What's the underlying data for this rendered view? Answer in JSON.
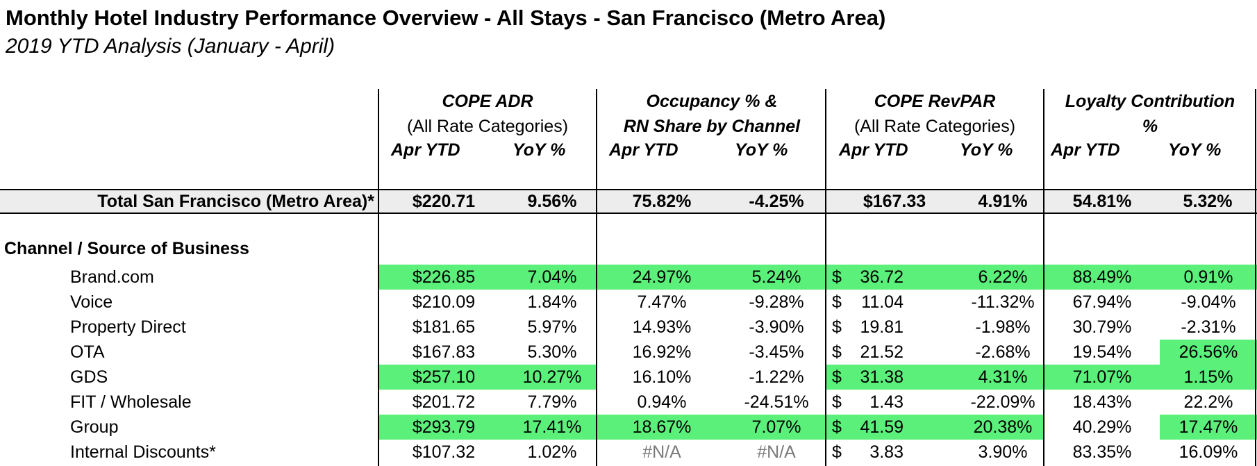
{
  "title": "Monthly Hotel Industry Performance Overview - All Stays - San Francisco (Metro Area)",
  "subtitle": "2019 YTD Analysis (January - April)",
  "column_groups": [
    {
      "line1": "COPE ADR",
      "line2": "(All Rate Categories)",
      "line2_bold": false,
      "sub1": "Apr YTD",
      "sub2": "YoY %"
    },
    {
      "line1": "Occupancy % &",
      "line2": "RN Share by Channel",
      "line2_bold": true,
      "sub1": "Apr YTD",
      "sub2": "YoY %"
    },
    {
      "line1": "COPE RevPAR",
      "line2": "(All Rate Categories)",
      "line2_bold": false,
      "sub1": "Apr YTD",
      "sub2": "YoY %"
    },
    {
      "line1": "Loyalty Contribution",
      "line2": "%",
      "line2_bold": true,
      "sub1": "Apr YTD",
      "sub2": "YoY %"
    }
  ],
  "total": {
    "label": "Total San Francisco (Metro Area)*",
    "values": [
      "$220.71",
      "9.56%",
      "75.82%",
      "-4.25%",
      "$167.33",
      "4.91%",
      "54.81%",
      "5.32%"
    ]
  },
  "section_label": "Channel / Source of Business",
  "rows": [
    {
      "label": "Brand.com",
      "values": [
        "$226.85",
        "7.04%",
        "24.97%",
        "5.24%",
        "$",
        "36.72",
        "6.22%",
        "88.49%",
        "0.91%"
      ]
    },
    {
      "label": "Voice",
      "values": [
        "$210.09",
        "1.84%",
        "7.47%",
        "-9.28%",
        "$",
        "11.04",
        "-11.32%",
        "67.94%",
        "-9.04%"
      ]
    },
    {
      "label": "Property Direct",
      "values": [
        "$181.65",
        "5.97%",
        "14.93%",
        "-3.90%",
        "$",
        "19.81",
        "-1.98%",
        "30.79%",
        "-2.31%"
      ]
    },
    {
      "label": "OTA",
      "values": [
        "$167.83",
        "5.30%",
        "16.92%",
        "-3.45%",
        "$",
        "21.52",
        "-2.68%",
        "19.54%",
        "26.56%"
      ]
    },
    {
      "label": "GDS",
      "values": [
        "$257.10",
        "10.27%",
        "16.10%",
        "-1.22%",
        "$",
        "31.38",
        "4.31%",
        "71.07%",
        "1.15%"
      ]
    },
    {
      "label": "FIT / Wholesale",
      "values": [
        "$201.72",
        "7.79%",
        "0.94%",
        "-24.51%",
        "$",
        "1.43",
        "-22.09%",
        "18.43%",
        "22.2%"
      ]
    },
    {
      "label": "Group",
      "values": [
        "$293.79",
        "17.41%",
        "18.67%",
        "7.07%",
        "$",
        "41.59",
        "20.38%",
        "40.29%",
        "17.47%"
      ]
    },
    {
      "label": "Internal Discounts*",
      "values": [
        "$107.32",
        "1.02%",
        "#N/A",
        "#N/A",
        "$",
        "3.83",
        "3.90%",
        "83.35%",
        "16.09%"
      ]
    }
  ],
  "colors": {
    "highlight": "#5af07a",
    "total_band": "#ededed",
    "na_text": "#7a7a7a"
  }
}
